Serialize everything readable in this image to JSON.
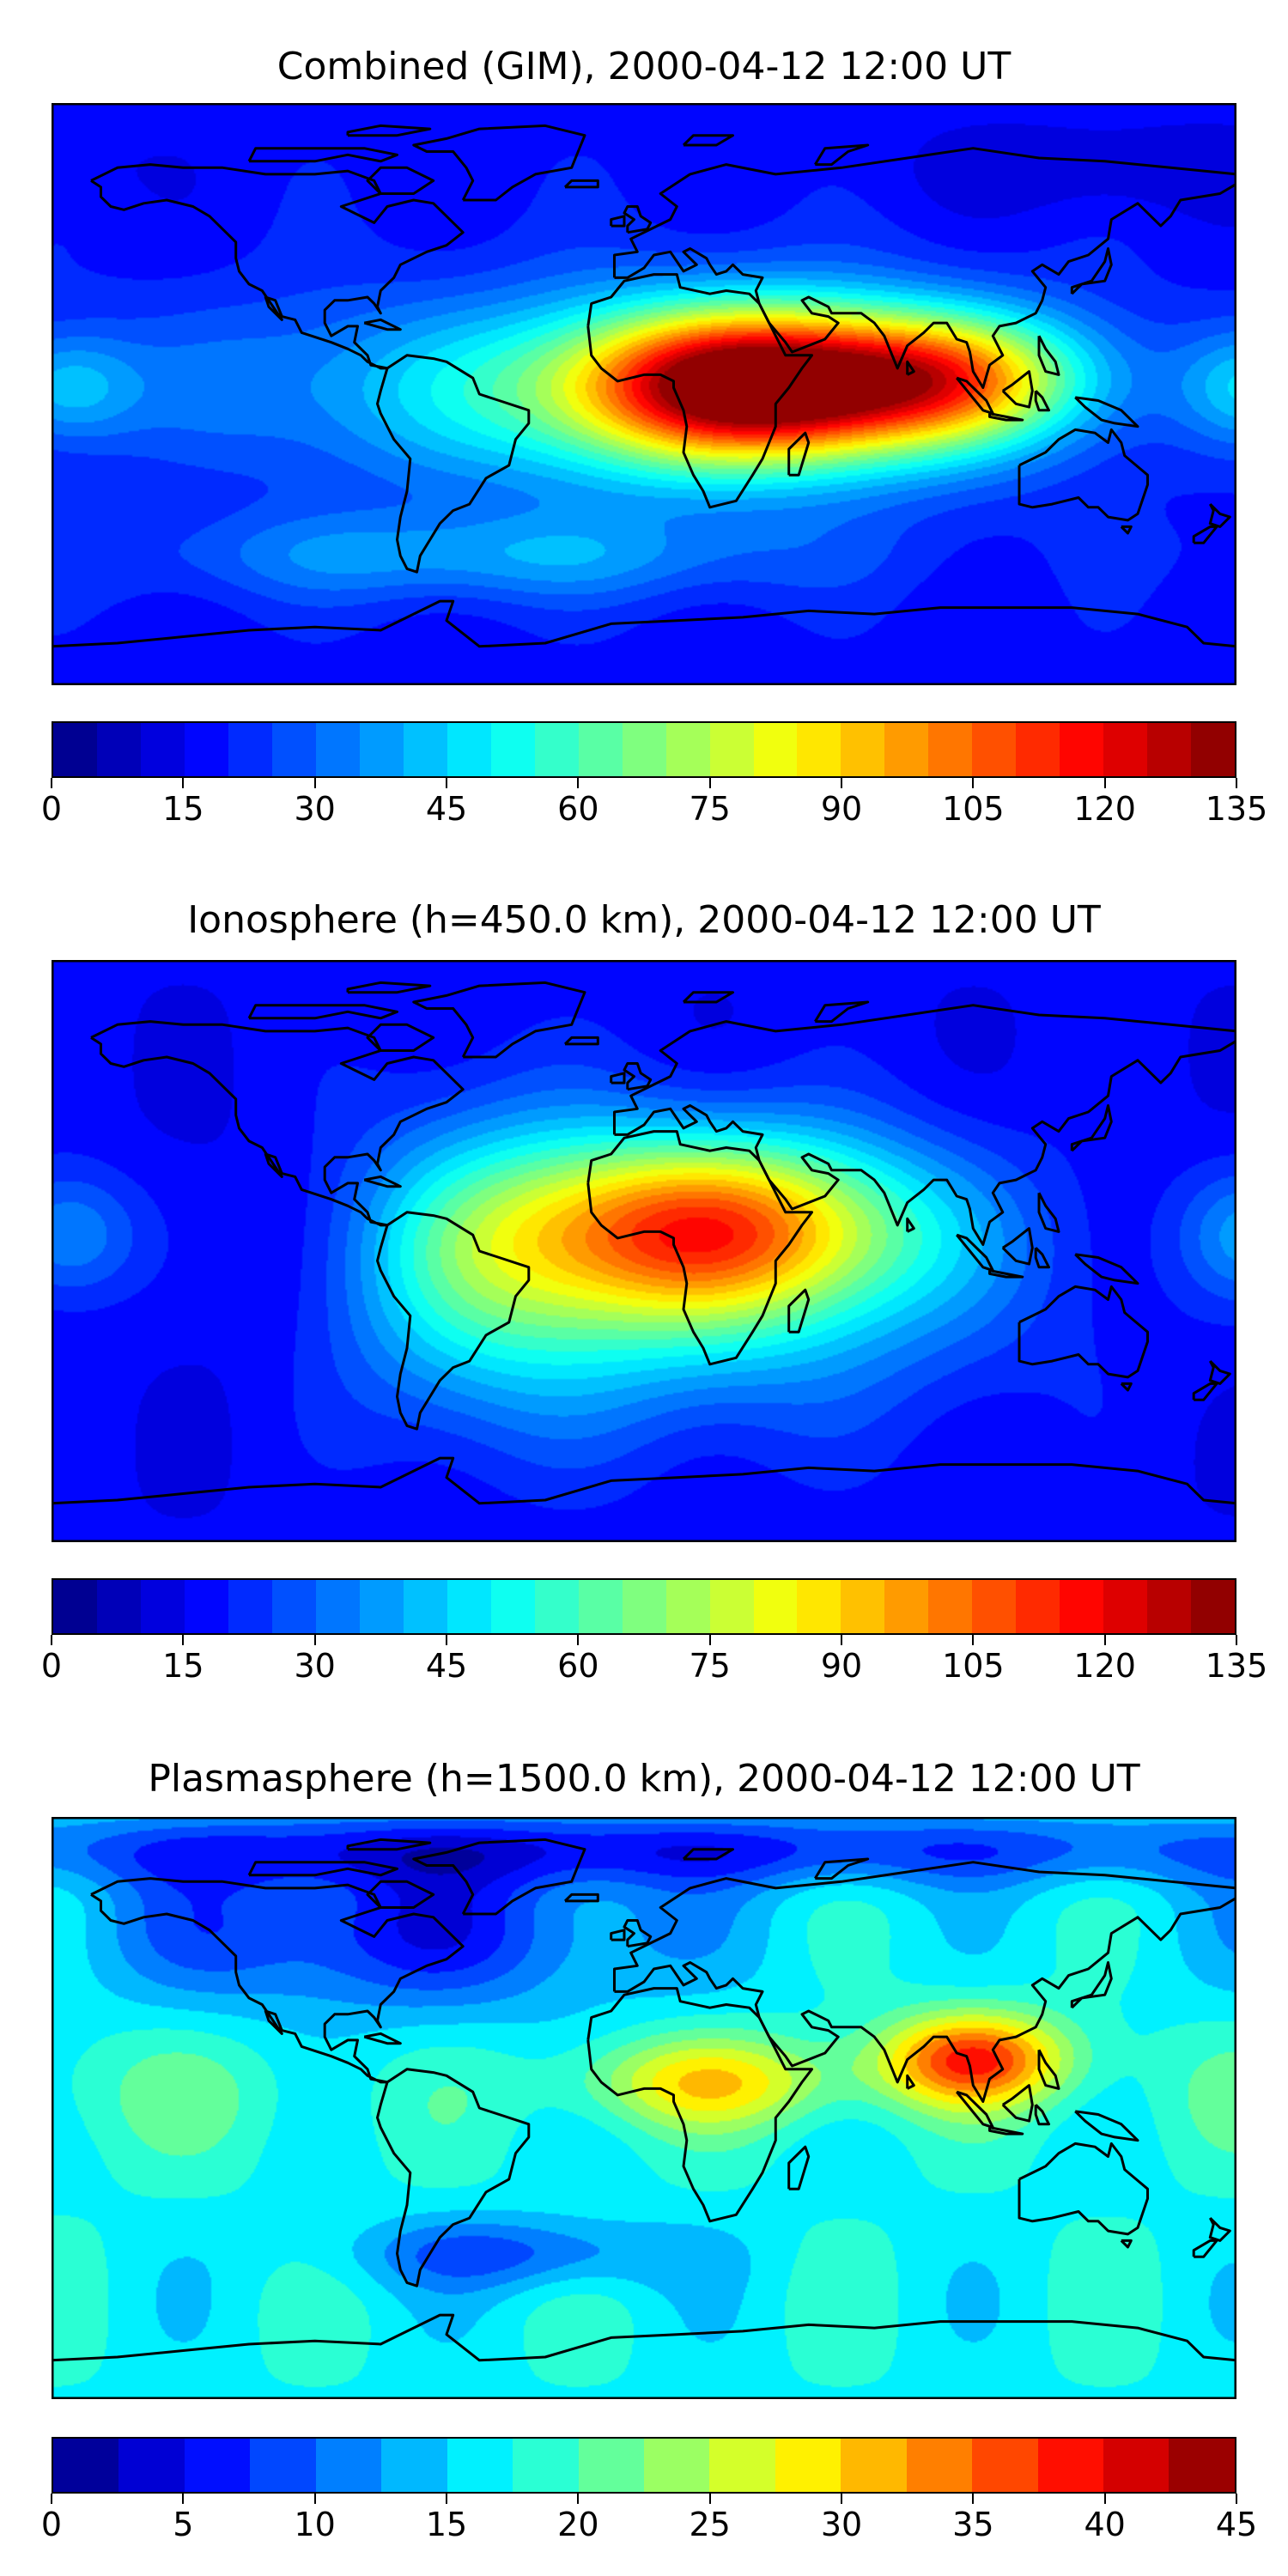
{
  "panels": [
    {
      "title": "Combined (GIM), 2000-04-12 12:00 UT",
      "colorbar": {
        "min": 0,
        "max": 135,
        "levels": 27,
        "tick_labels": [
          "0",
          "15",
          "30",
          "45",
          "60",
          "75",
          "90",
          "105",
          "120",
          "135"
        ]
      },
      "field": {
        "background": 18,
        "blobs": [
          {
            "lon": 35,
            "lat": 3,
            "slon": 38,
            "slat": 16,
            "amp": 105
          },
          {
            "lon": 0,
            "lat": 0,
            "slon": 75,
            "slat": 22,
            "amp": 35
          },
          {
            "lon": 95,
            "lat": 5,
            "slon": 30,
            "slat": 14,
            "amp": 55
          },
          {
            "lon": -120,
            "lat": 5,
            "slon": 40,
            "slat": 18,
            "amp": 6
          },
          {
            "lon": -175,
            "lat": 2,
            "slon": 15,
            "slat": 12,
            "amp": 22
          },
          {
            "lon": -50,
            "lat": -50,
            "slon": 70,
            "slat": 10,
            "amp": 20
          },
          {
            "lon": 140,
            "lat": 70,
            "slon": 40,
            "slat": 10,
            "amp": -8
          }
        ]
      }
    },
    {
      "title": "Ionosphere  (h=450.0 km), 2000-04-12 12:00 UT",
      "colorbar": {
        "min": 0,
        "max": 135,
        "levels": 27,
        "tick_labels": [
          "0",
          "15",
          "30",
          "45",
          "60",
          "75",
          "90",
          "105",
          "120",
          "135"
        ]
      },
      "field": {
        "background": 16,
        "blobs": [
          {
            "lon": 20,
            "lat": 8,
            "slon": 45,
            "slat": 20,
            "amp": 78
          },
          {
            "lon": 0,
            "lat": -15,
            "slon": 70,
            "slat": 28,
            "amp": 28
          },
          {
            "lon": -50,
            "lat": 0,
            "slon": 30,
            "slat": 35,
            "amp": 20
          },
          {
            "lon": -175,
            "lat": 5,
            "slon": 15,
            "slat": 14,
            "amp": 20
          },
          {
            "lon": -110,
            "lat": -10,
            "slon": 30,
            "slat": 30,
            "amp": -8
          }
        ]
      }
    },
    {
      "title": "Plasmasphere (h=1500.0 km), 2000-04-12 12:00 UT",
      "colorbar": {
        "min": 0,
        "max": 45,
        "levels": 18,
        "tick_labels": [
          "0",
          "5",
          "10",
          "15",
          "20",
          "25",
          "30",
          "35",
          "40",
          "45"
        ]
      },
      "field": {
        "background": 17,
        "blobs": [
          {
            "lon": 100,
            "lat": 15,
            "slon": 20,
            "slat": 10,
            "amp": 20
          },
          {
            "lon": 20,
            "lat": 8,
            "slon": 30,
            "slat": 10,
            "amp": 12
          },
          {
            "lon": -80,
            "lat": 55,
            "slon": 60,
            "slat": 18,
            "amp": -11
          },
          {
            "lon": 0,
            "lat": 80,
            "slon": 180,
            "slat": 8,
            "amp": -10
          },
          {
            "lon": -40,
            "lat": -45,
            "slon": 35,
            "slat": 8,
            "amp": -8
          },
          {
            "lon": -150,
            "lat": 5,
            "slon": 50,
            "slat": 15,
            "amp": 3
          }
        ]
      }
    }
  ],
  "colors": {
    "jet_stops": [
      "#00007f",
      "#0000ff",
      "#007fff",
      "#00ffff",
      "#7fff7f",
      "#ffff00",
      "#ff7f00",
      "#ff0000",
      "#7f0000"
    ],
    "coastline": "#000000",
    "frame": "#000000"
  }
}
